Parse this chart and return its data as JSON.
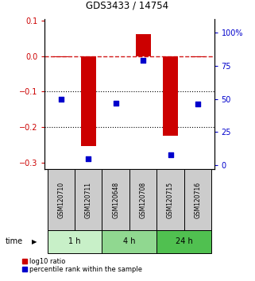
{
  "title": "GDS3433 / 14754",
  "samples": [
    "GSM120710",
    "GSM120711",
    "GSM120648",
    "GSM120708",
    "GSM120715",
    "GSM120716"
  ],
  "log10_ratio": [
    -0.002,
    -0.255,
    -0.001,
    0.062,
    -0.225,
    -0.003
  ],
  "percentile_rank": [
    50,
    5,
    47,
    79,
    8,
    46
  ],
  "ylim_left": [
    -0.32,
    0.105
  ],
  "ylim_right": [
    -3.36,
    110.25
  ],
  "yticks_left": [
    -0.3,
    -0.2,
    -0.1,
    0.0,
    0.1
  ],
  "yticks_right": [
    0,
    25,
    50,
    75,
    100
  ],
  "ytick_labels_right": [
    "0",
    "25",
    "50",
    "75",
    "100%"
  ],
  "hlines_dotted": [
    -0.1,
    -0.2
  ],
  "hline_dashed": 0.0,
  "time_groups": [
    {
      "label": "1 h",
      "samples": [
        0,
        1
      ],
      "color": "#c8f0c8"
    },
    {
      "label": "4 h",
      "samples": [
        2,
        3
      ],
      "color": "#90d890"
    },
    {
      "label": "24 h",
      "samples": [
        4,
        5
      ],
      "color": "#50c050"
    }
  ],
  "bar_color": "#cc0000",
  "point_color": "#0000cc",
  "bar_width": 0.55,
  "point_size": 22,
  "left_axis_color": "#cc0000",
  "right_axis_color": "#0000cc",
  "legend_red_label": "log10 ratio",
  "legend_blue_label": "percentile rank within the sample",
  "time_label": "time",
  "sample_box_color": "#cccccc",
  "sample_box_edge": "#000000"
}
